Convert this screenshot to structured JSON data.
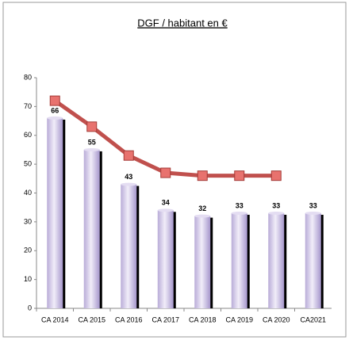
{
  "chart_data": {
    "type": "bar",
    "title": "DGF  / habitant en €",
    "categories": [
      "CA 2014",
      "CA 2015",
      "CA 2016",
      "CA 2017",
      "CA 2018",
      "CA 2019",
      "CA 2020",
      "CA2021"
    ],
    "series": [
      {
        "type": "bar",
        "color": "#cfc4e6",
        "values": [
          66,
          55,
          43,
          34,
          32,
          33,
          33,
          33
        ]
      },
      {
        "type": "line",
        "color": "#c0504d",
        "values": [
          72,
          63,
          53,
          47,
          46,
          46,
          46,
          null
        ]
      }
    ],
    "ylim": [
      0,
      80
    ],
    "yticks": [
      0,
      10,
      20,
      30,
      40,
      50,
      60,
      70,
      80
    ],
    "grid": false
  }
}
